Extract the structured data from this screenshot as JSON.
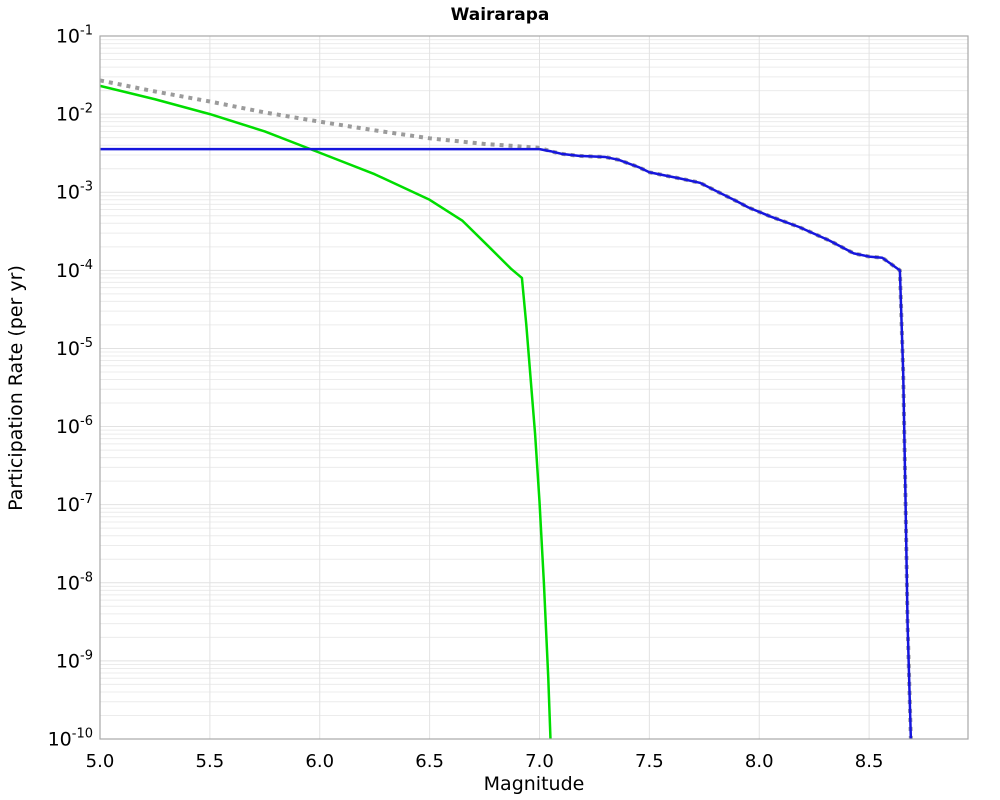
{
  "chart_data": {
    "type": "line",
    "title": "Wairarapa",
    "xlabel": "Magnitude",
    "ylabel": "Participation Rate (per yr)",
    "xlim": [
      5.0,
      8.95
    ],
    "y_log_range": [
      -10,
      -1
    ],
    "grid": true,
    "legend": "none",
    "x_ticks": [
      "5.0",
      "5.5",
      "6.0",
      "6.5",
      "7.0",
      "7.5",
      "8.0",
      "8.5"
    ],
    "y_tick_exponents": [
      "-1",
      "-2",
      "-3",
      "-4",
      "-5",
      "-6",
      "-7",
      "-8",
      "-9",
      "-10"
    ],
    "colors": {
      "grid_minor": "#ececec",
      "grid_major": "#e2e2e2",
      "spine": "#a8a8a8",
      "gray_series": "#9b9b9b",
      "green_series": "#00dd00",
      "blue_series": "#1616dd"
    },
    "series": [
      {
        "name": "gray-dotted-curve",
        "color": "#9b9b9b",
        "line_style": "dotted",
        "line_width": 4,
        "points": [
          [
            5.0,
            0.027
          ],
          [
            5.25,
            0.0195
          ],
          [
            5.5,
            0.0145
          ],
          [
            5.75,
            0.0105
          ],
          [
            6.0,
            0.008
          ],
          [
            6.25,
            0.0062
          ],
          [
            6.5,
            0.0049
          ],
          [
            6.75,
            0.00415
          ],
          [
            7.0,
            0.0037
          ],
          [
            7.05,
            0.00335
          ],
          [
            7.1,
            0.0031
          ],
          [
            7.18,
            0.00292
          ],
          [
            7.3,
            0.00282
          ],
          [
            7.36,
            0.0026
          ],
          [
            7.45,
            0.0021
          ],
          [
            7.5,
            0.0018
          ],
          [
            7.58,
            0.00162
          ],
          [
            7.64,
            0.0015
          ],
          [
            7.73,
            0.00132
          ],
          [
            7.8,
            0.00105
          ],
          [
            7.9,
            0.00076
          ],
          [
            7.95,
            0.00064
          ],
          [
            8.05,
            0.00049
          ],
          [
            8.18,
            0.00036
          ],
          [
            8.32,
            0.00024
          ],
          [
            8.43,
            0.000165
          ],
          [
            8.5,
            0.00015
          ],
          [
            8.56,
            0.000145
          ],
          [
            8.61,
            0.000115
          ],
          [
            8.64,
            0.0001
          ],
          [
            8.655,
            5e-06
          ],
          [
            8.665,
            1.5e-07
          ],
          [
            8.675,
            3e-09
          ],
          [
            8.69,
            1e-10
          ]
        ]
      },
      {
        "name": "green-solid-curve",
        "color": "#00dd00",
        "line_style": "solid",
        "line_width": 2.5,
        "points": [
          [
            5.0,
            0.023
          ],
          [
            5.25,
            0.0155
          ],
          [
            5.5,
            0.01
          ],
          [
            5.75,
            0.006
          ],
          [
            6.0,
            0.0032
          ],
          [
            6.25,
            0.0017
          ],
          [
            6.5,
            0.0008
          ],
          [
            6.65,
            0.00043
          ],
          [
            6.77,
            0.0002
          ],
          [
            6.87,
            0.000105
          ],
          [
            6.92,
            8e-05
          ],
          [
            6.94,
            2e-05
          ],
          [
            6.96,
            4e-06
          ],
          [
            6.98,
            8e-07
          ],
          [
            7.0,
            1.1e-07
          ],
          [
            7.02,
            1e-08
          ],
          [
            7.04,
            6e-10
          ],
          [
            7.05,
            1e-10
          ]
        ]
      },
      {
        "name": "blue-solid-curve",
        "color": "#1616dd",
        "line_style": "solid",
        "line_width": 2.5,
        "points": [
          [
            5.0,
            0.00356
          ],
          [
            7.0,
            0.00356
          ],
          [
            7.05,
            0.00335
          ],
          [
            7.1,
            0.0031
          ],
          [
            7.18,
            0.00292
          ],
          [
            7.3,
            0.00282
          ],
          [
            7.36,
            0.0026
          ],
          [
            7.45,
            0.0021
          ],
          [
            7.5,
            0.0018
          ],
          [
            7.58,
            0.00162
          ],
          [
            7.64,
            0.0015
          ],
          [
            7.73,
            0.00132
          ],
          [
            7.8,
            0.00105
          ],
          [
            7.9,
            0.00076
          ],
          [
            7.95,
            0.00064
          ],
          [
            8.05,
            0.00049
          ],
          [
            8.18,
            0.00036
          ],
          [
            8.32,
            0.00024
          ],
          [
            8.43,
            0.000165
          ],
          [
            8.5,
            0.00015
          ],
          [
            8.56,
            0.000145
          ],
          [
            8.61,
            0.000115
          ],
          [
            8.64,
            0.0001
          ],
          [
            8.655,
            5e-06
          ],
          [
            8.665,
            1.5e-07
          ],
          [
            8.675,
            3e-09
          ],
          [
            8.69,
            1e-10
          ]
        ]
      }
    ]
  }
}
